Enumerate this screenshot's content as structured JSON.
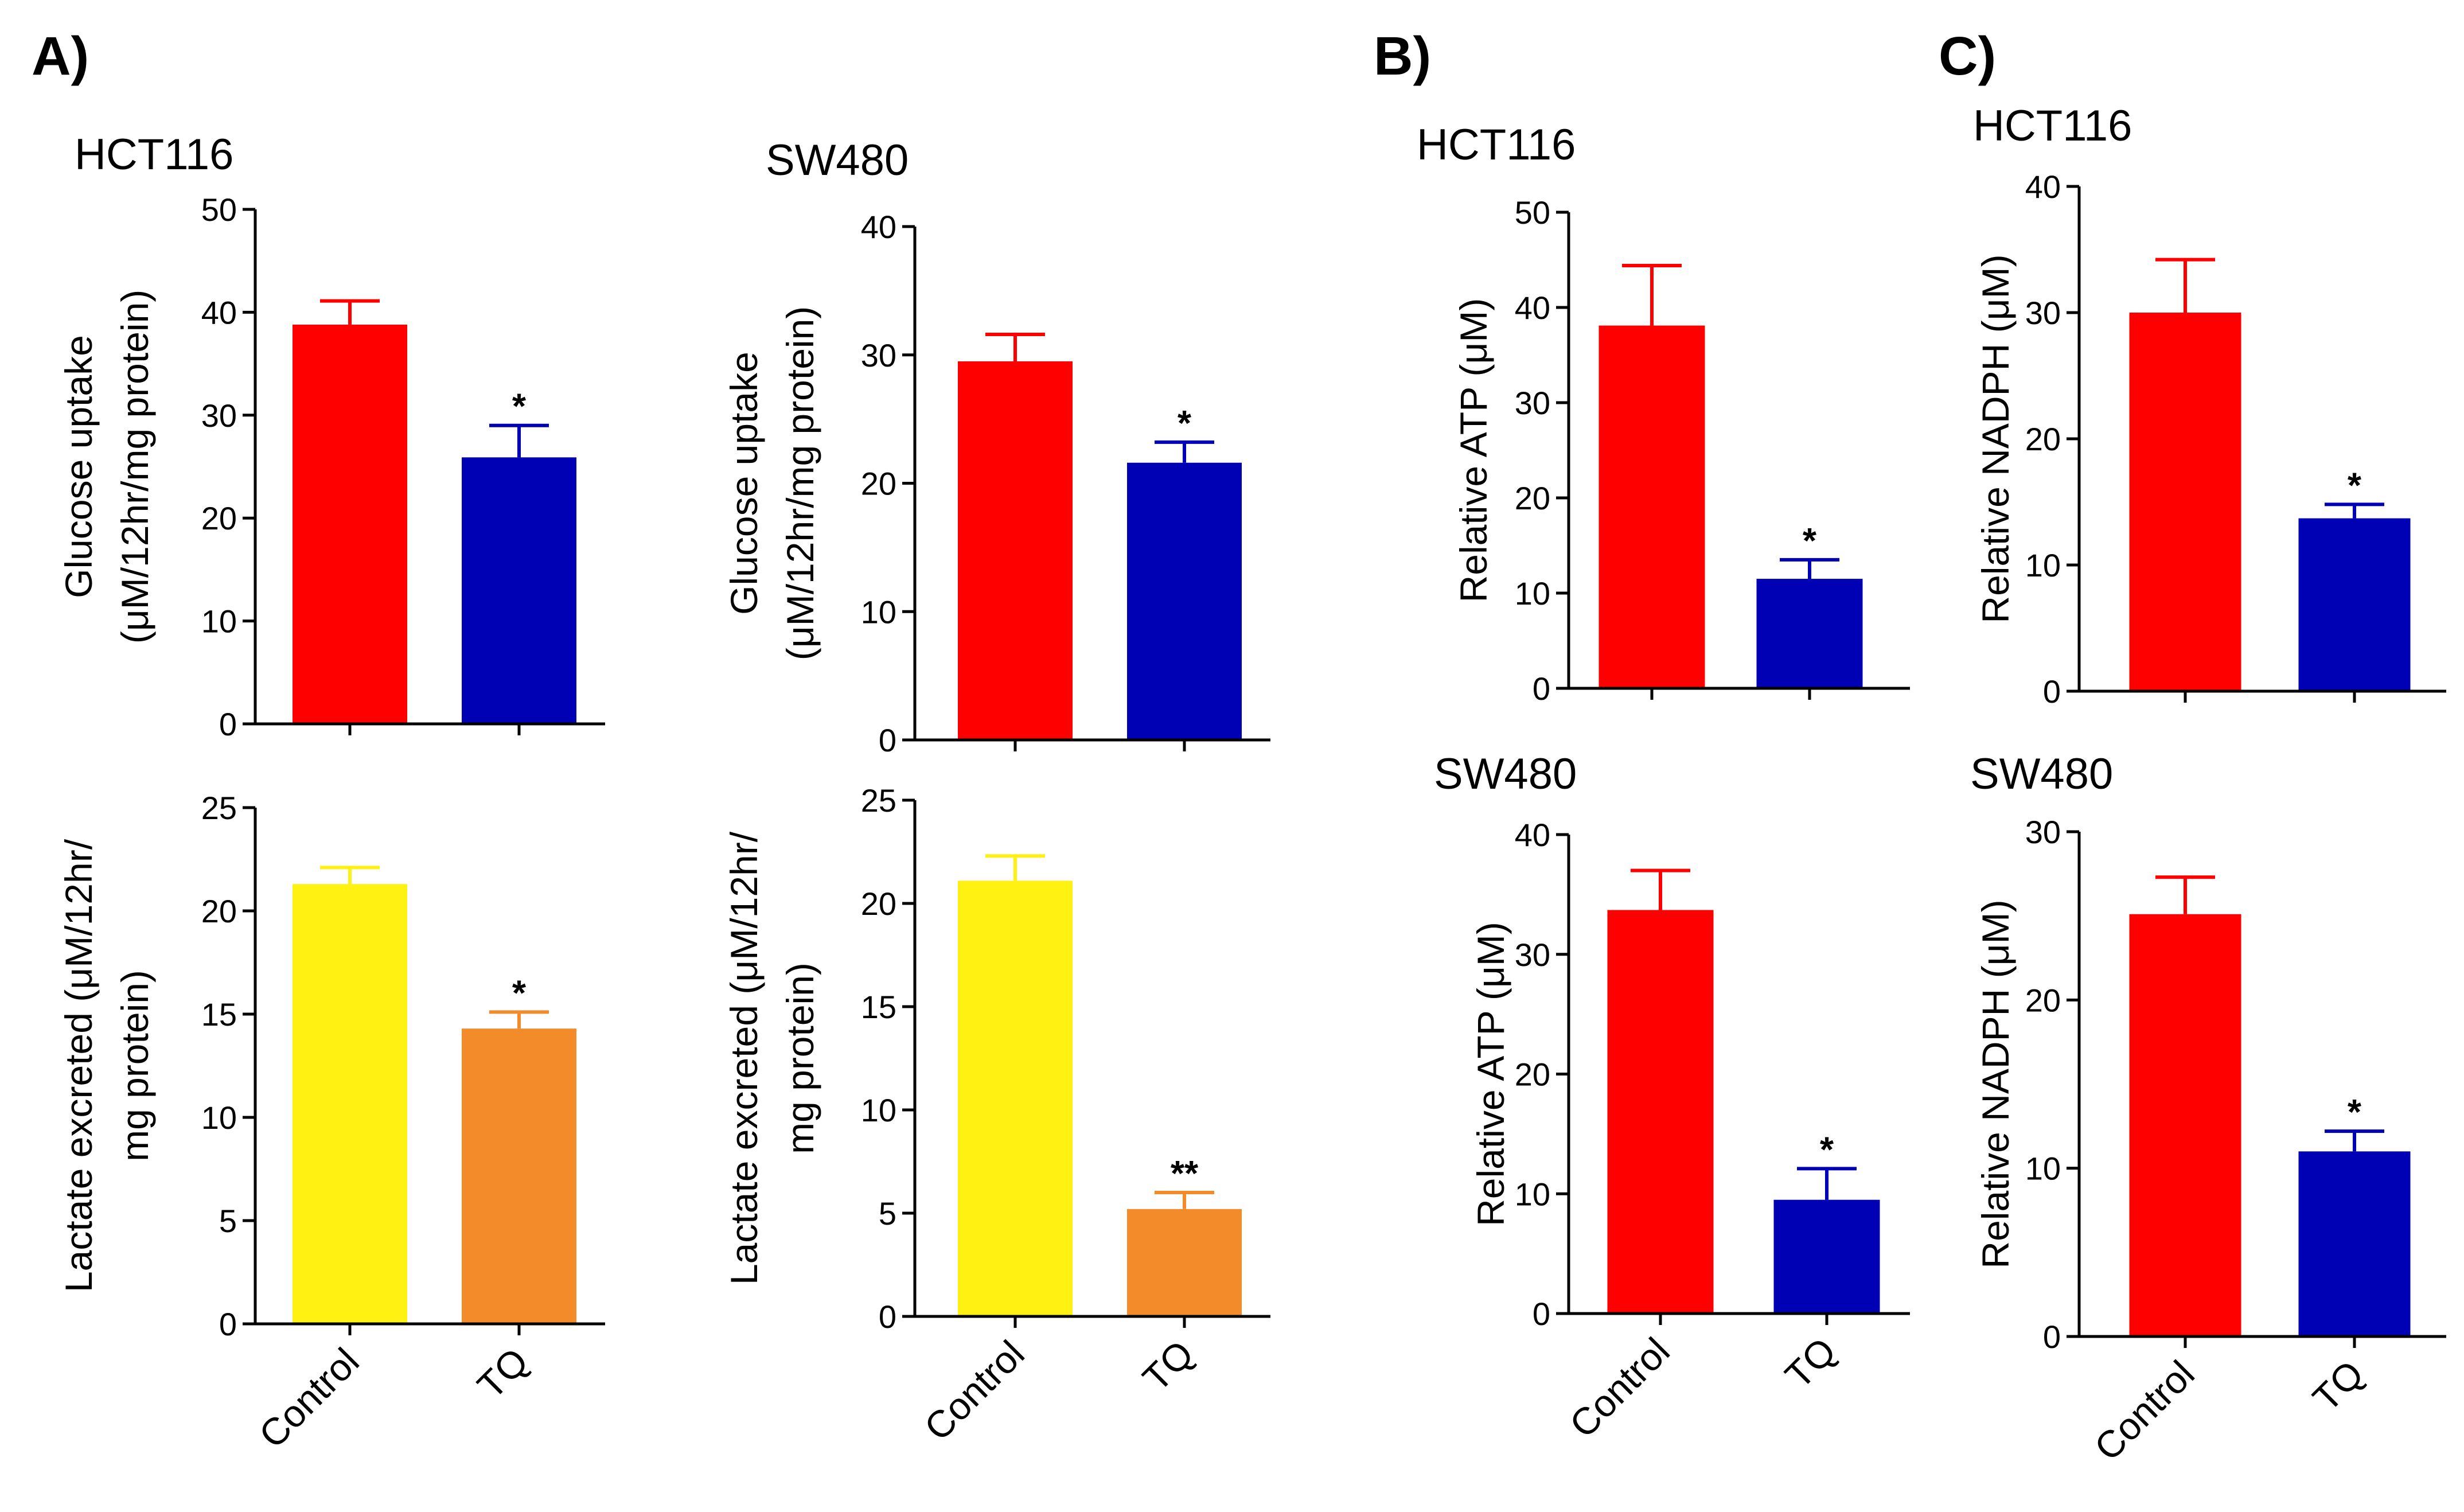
{
  "panel_labels": [
    "A)",
    "B)",
    "C)"
  ],
  "colors": {
    "control_red": "#ff0000",
    "tq_blue": "#0000b4",
    "control_yellow": "#fff212",
    "tq_orange": "#f38b2a"
  },
  "chart_data": [
    {
      "id": "a-hct116-glucose",
      "type": "bar",
      "panel": "A)",
      "title": "HCT116",
      "ylabel": [
        "Glucose uptake",
        "(μM/12hr/mg protein)"
      ],
      "ylim": [
        0,
        50
      ],
      "yticks": [
        0,
        10,
        20,
        30,
        40,
        50
      ],
      "categories": [
        "Control",
        "TQ"
      ],
      "values": [
        38.8,
        25.9
      ],
      "errors": [
        2.3,
        3.1
      ],
      "significance": [
        "",
        "*"
      ],
      "colors": [
        "#ff0000",
        "#0000b4"
      ],
      "show_category_labels": false
    },
    {
      "id": "a-hct116-lactate",
      "type": "bar",
      "panel": "A)",
      "title": "",
      "ylabel": [
        "Lactate excreted (μM/12hr/",
        "mg protein)"
      ],
      "ylim": [
        0,
        25
      ],
      "yticks": [
        0,
        5,
        10,
        15,
        20,
        25
      ],
      "categories": [
        "Control",
        "TQ"
      ],
      "values": [
        21.3,
        14.3
      ],
      "errors": [
        0.8,
        0.8
      ],
      "significance": [
        "",
        "*"
      ],
      "colors": [
        "#fff212",
        "#f38b2a"
      ],
      "show_category_labels": true
    },
    {
      "id": "a-sw480-glucose",
      "type": "bar",
      "panel": "A)",
      "title": "SW480",
      "ylabel": [
        "Glucose uptake",
        "(μM/12hr/mg protein)"
      ],
      "ylim": [
        0,
        40
      ],
      "yticks": [
        0,
        10,
        20,
        30,
        40
      ],
      "categories": [
        "Control",
        "TQ"
      ],
      "values": [
        29.5,
        21.6
      ],
      "errors": [
        2.1,
        1.6
      ],
      "significance": [
        "",
        "*"
      ],
      "colors": [
        "#ff0000",
        "#0000b4"
      ],
      "show_category_labels": false
    },
    {
      "id": "a-sw480-lactate",
      "type": "bar",
      "panel": "A)",
      "title": "",
      "ylabel": [
        "Lactate excreted (μM/12hr/",
        "mg protein)"
      ],
      "ylim": [
        0,
        25
      ],
      "yticks": [
        0,
        5,
        10,
        15,
        20,
        25
      ],
      "categories": [
        "Control",
        "TQ"
      ],
      "values": [
        21.1,
        5.2
      ],
      "errors": [
        1.2,
        0.8
      ],
      "significance": [
        "",
        "**"
      ],
      "colors": [
        "#fff212",
        "#f38b2a"
      ],
      "show_category_labels": true
    },
    {
      "id": "b-hct116-atp",
      "type": "bar",
      "panel": "B)",
      "title": "HCT116",
      "ylabel": [
        "Relative ATP (μM)"
      ],
      "ylim": [
        0,
        50
      ],
      "yticks": [
        0,
        10,
        20,
        30,
        40,
        50
      ],
      "categories": [
        "Control",
        "TQ"
      ],
      "values": [
        38.1,
        11.5
      ],
      "errors": [
        6.3,
        2.0
      ],
      "significance": [
        "",
        "*"
      ],
      "colors": [
        "#ff0000",
        "#0000b4"
      ],
      "show_category_labels": false
    },
    {
      "id": "b-sw480-atp",
      "type": "bar",
      "panel": "B)",
      "title": "SW480",
      "ylabel": [
        "Relative ATP (μM)"
      ],
      "ylim": [
        0,
        40
      ],
      "yticks": [
        0,
        10,
        20,
        30,
        40
      ],
      "categories": [
        "Control",
        "TQ"
      ],
      "values": [
        33.7,
        9.5
      ],
      "errors": [
        3.3,
        2.6
      ],
      "significance": [
        "",
        "*"
      ],
      "colors": [
        "#ff0000",
        "#0000b4"
      ],
      "show_category_labels": true
    },
    {
      "id": "c-hct116-nadph",
      "type": "bar",
      "panel": "C)",
      "title": "HCT116",
      "ylabel": [
        "Relative NADPH (μM)"
      ],
      "ylim": [
        0,
        40
      ],
      "yticks": [
        0,
        10,
        20,
        30,
        40
      ],
      "categories": [
        "Control",
        "TQ"
      ],
      "values": [
        30.0,
        13.7
      ],
      "errors": [
        4.2,
        1.1
      ],
      "significance": [
        "",
        "*"
      ],
      "colors": [
        "#ff0000",
        "#0000b4"
      ],
      "show_category_labels": false
    },
    {
      "id": "c-sw480-nadph",
      "type": "bar",
      "panel": "C)",
      "title": "SW480",
      "ylabel": [
        "Relative NADPH (μM)"
      ],
      "ylim": [
        0,
        30
      ],
      "yticks": [
        0,
        10,
        20,
        30
      ],
      "categories": [
        "Control",
        "TQ"
      ],
      "values": [
        25.1,
        11.0
      ],
      "errors": [
        2.2,
        1.2
      ],
      "significance": [
        "",
        "*"
      ],
      "colors": [
        "#ff0000",
        "#0000b4"
      ],
      "show_category_labels": true
    }
  ]
}
